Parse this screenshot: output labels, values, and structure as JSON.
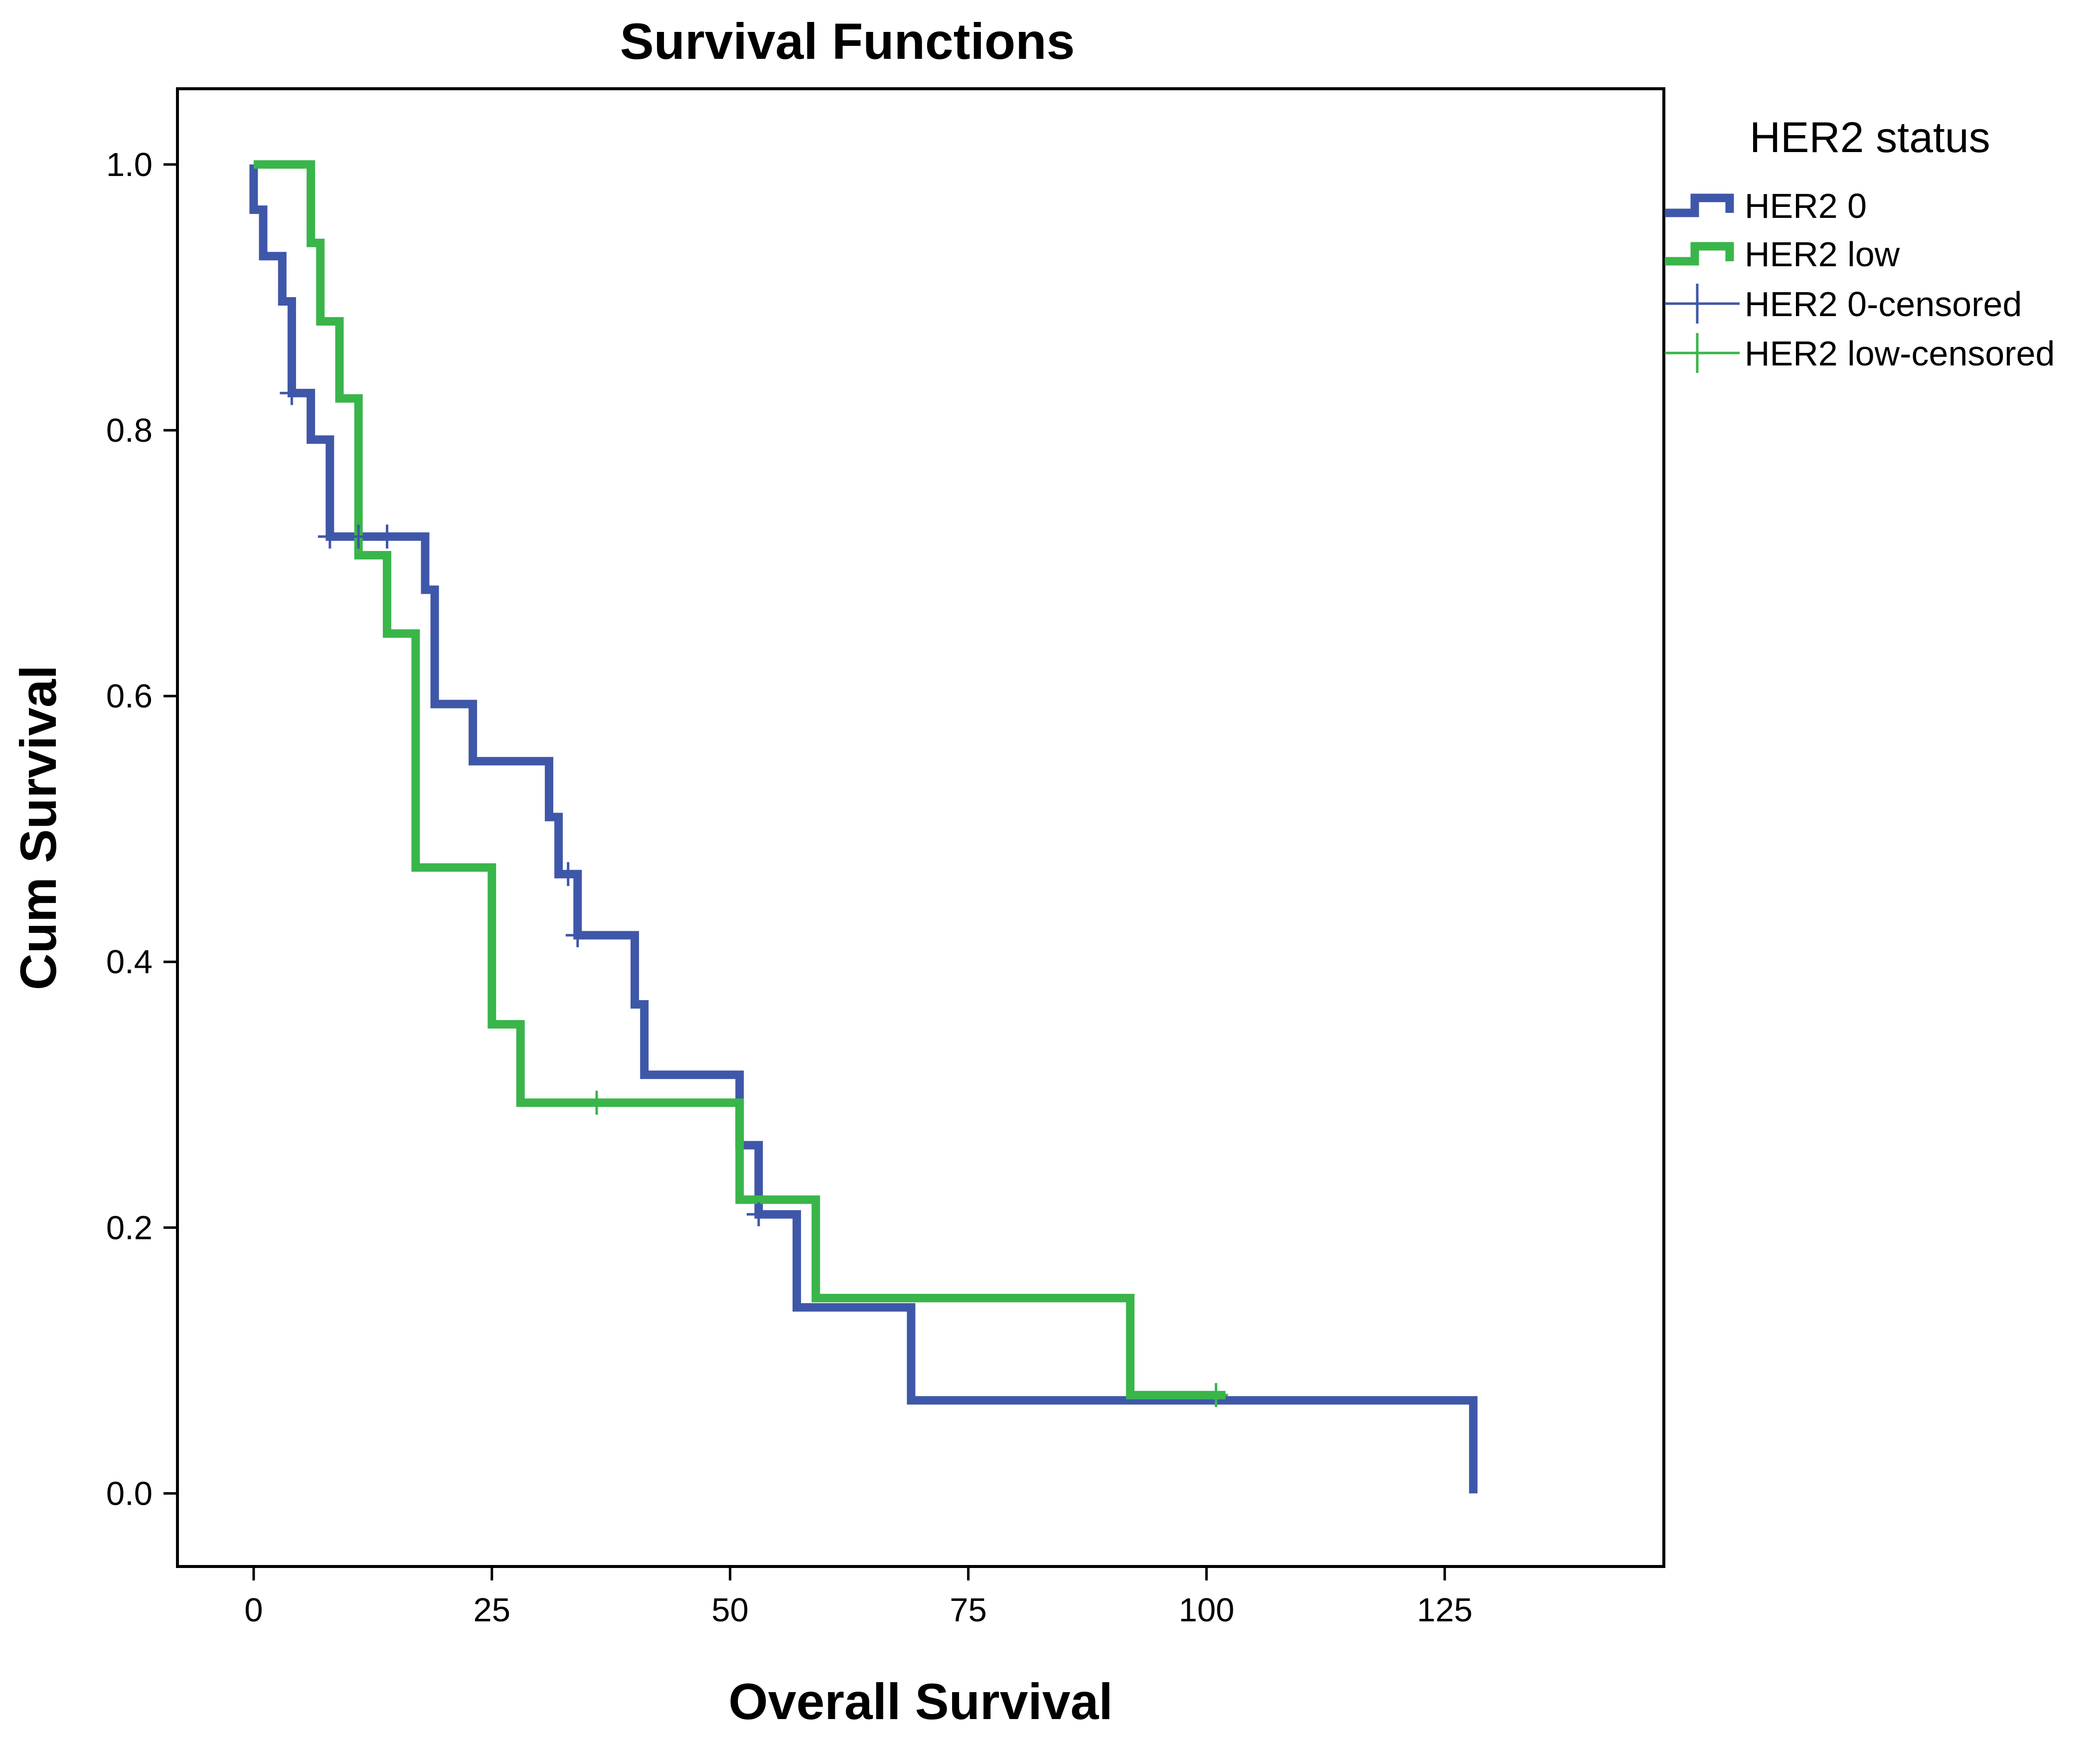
{
  "chart_data": {
    "type": "line",
    "step": true,
    "title": "Survival Functions",
    "xlabel": "Overall Survival",
    "ylabel": "Cum Survival",
    "xlim": [
      -8,
      148
    ],
    "ylim": [
      -0.055,
      1.057
    ],
    "xticks": [
      0,
      25,
      50,
      75,
      100,
      125
    ],
    "xtick_labels": [
      "0",
      "25",
      "50",
      "75",
      "100",
      "125"
    ],
    "yticks": [
      0.0,
      0.2,
      0.4,
      0.6,
      0.8,
      1.0
    ],
    "ytick_labels": [
      "0.0",
      "0.2",
      "0.4",
      "0.6",
      "0.8",
      "1.0"
    ],
    "grid": false,
    "legend": {
      "title": "HER2 status",
      "position": "right",
      "entries": [
        {
          "label": "HER2 0",
          "kind": "step-line",
          "color": "#3f57a9"
        },
        {
          "label": "HER2 low",
          "kind": "step-line",
          "color": "#39b54a"
        },
        {
          "label": "HER2 0-censored",
          "kind": "censor-mark",
          "color": "#3f57a9"
        },
        {
          "label": "HER2 low-censored",
          "kind": "censor-mark",
          "color": "#39b54a"
        }
      ]
    },
    "series": [
      {
        "name": "HER2 0",
        "color": "#3f57a9",
        "steps": [
          [
            0,
            1.0
          ],
          [
            0,
            0.966
          ],
          [
            1,
            0.966
          ],
          [
            1,
            0.931
          ],
          [
            3,
            0.931
          ],
          [
            3,
            0.897
          ],
          [
            4,
            0.897
          ],
          [
            4,
            0.828
          ],
          [
            6,
            0.828
          ],
          [
            6,
            0.793
          ],
          [
            8,
            0.793
          ],
          [
            8,
            0.72
          ],
          [
            18,
            0.72
          ],
          [
            18,
            0.68
          ],
          [
            19,
            0.68
          ],
          [
            19,
            0.594
          ],
          [
            23,
            0.594
          ],
          [
            23,
            0.551
          ],
          [
            31,
            0.551
          ],
          [
            31,
            0.509
          ],
          [
            32,
            0.509
          ],
          [
            32,
            0.466
          ],
          [
            34,
            0.466
          ],
          [
            34,
            0.42
          ],
          [
            40,
            0.42
          ],
          [
            40,
            0.368
          ],
          [
            41,
            0.368
          ],
          [
            41,
            0.315
          ],
          [
            51,
            0.315
          ],
          [
            51,
            0.262
          ],
          [
            53,
            0.262
          ],
          [
            53,
            0.21
          ],
          [
            57,
            0.21
          ],
          [
            57,
            0.14
          ],
          [
            69,
            0.14
          ],
          [
            69,
            0.07
          ],
          [
            128,
            0.07
          ],
          [
            128,
            0.0
          ]
        ],
        "censored": [
          [
            4,
            0.828
          ],
          [
            8,
            0.72
          ],
          [
            11,
            0.72
          ],
          [
            14,
            0.72
          ],
          [
            33,
            0.466
          ],
          [
            34,
            0.42
          ],
          [
            53,
            0.21
          ]
        ]
      },
      {
        "name": "HER2 low",
        "color": "#39b54a",
        "steps": [
          [
            0,
            1.0
          ],
          [
            6,
            1.0
          ],
          [
            6,
            0.941
          ],
          [
            7,
            0.941
          ],
          [
            7,
            0.882
          ],
          [
            9,
            0.882
          ],
          [
            9,
            0.824
          ],
          [
            11,
            0.824
          ],
          [
            11,
            0.706
          ],
          [
            14,
            0.706
          ],
          [
            14,
            0.647
          ],
          [
            17,
            0.647
          ],
          [
            17,
            0.471
          ],
          [
            25,
            0.471
          ],
          [
            25,
            0.353
          ],
          [
            28,
            0.353
          ],
          [
            28,
            0.294
          ],
          [
            51,
            0.294
          ],
          [
            51,
            0.221
          ],
          [
            59,
            0.221
          ],
          [
            59,
            0.147
          ],
          [
            92,
            0.147
          ],
          [
            92,
            0.074
          ],
          [
            102,
            0.074
          ]
        ],
        "censored": [
          [
            36,
            0.294
          ],
          [
            101,
            0.074
          ]
        ]
      }
    ]
  }
}
